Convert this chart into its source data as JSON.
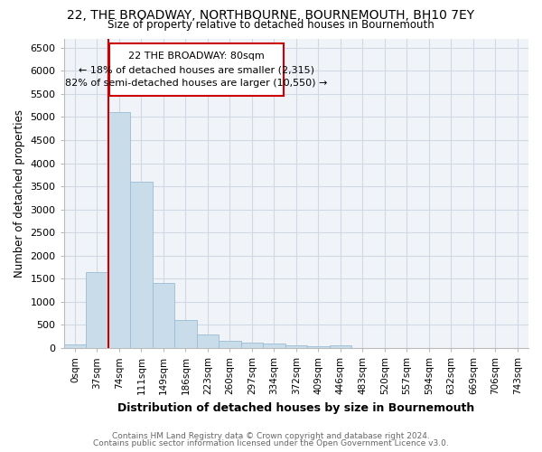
{
  "title": "22, THE BROADWAY, NORTHBOURNE, BOURNEMOUTH, BH10 7EY",
  "subtitle": "Size of property relative to detached houses in Bournemouth",
  "xlabel": "Distribution of detached houses by size in Bournemouth",
  "ylabel": "Number of detached properties",
  "footer1": "Contains HM Land Registry data © Crown copyright and database right 2024.",
  "footer2": "Contains public sector information licensed under the Open Government Licence v3.0.",
  "bar_labels": [
    "0sqm",
    "37sqm",
    "74sqm",
    "111sqm",
    "149sqm",
    "186sqm",
    "223sqm",
    "260sqm",
    "297sqm",
    "334sqm",
    "372sqm",
    "409sqm",
    "446sqm",
    "483sqm",
    "520sqm",
    "557sqm",
    "594sqm",
    "632sqm",
    "669sqm",
    "706sqm",
    "743sqm"
  ],
  "bar_values": [
    75,
    1650,
    5100,
    3600,
    1400,
    600,
    300,
    150,
    120,
    90,
    50,
    40,
    60,
    0,
    0,
    0,
    0,
    0,
    0,
    0,
    0
  ],
  "bar_color": "#c9dcea",
  "bar_edge_color": "#9bbcd4",
  "highlight_line_color": "#cc0000",
  "highlight_bar_index": 2,
  "annotation_text": "22 THE BROADWAY: 80sqm\n← 18% of detached houses are smaller (2,315)\n82% of semi-detached houses are larger (10,550) →",
  "annotation_box_color": "#ffffff",
  "annotation_box_edge": "#cc0000",
  "ylim": [
    0,
    6700
  ],
  "yticks": [
    0,
    500,
    1000,
    1500,
    2000,
    2500,
    3000,
    3500,
    4000,
    4500,
    5000,
    5500,
    6000,
    6500
  ],
  "grid_color": "#d0d8e4",
  "background_color": "#ffffff",
  "plot_bg_color": "#f0f4f8"
}
